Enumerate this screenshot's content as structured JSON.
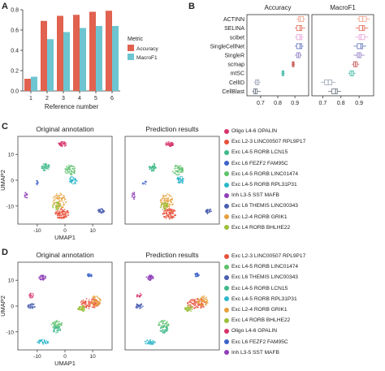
{
  "panels": {
    "A": "A",
    "B": "B",
    "C": "C",
    "D": "D"
  },
  "chart_data": [
    {
      "type": "bar",
      "panel": "A",
      "categories": [
        "1",
        "2",
        "3",
        "4",
        "5",
        "6"
      ],
      "series": [
        {
          "name": "Accuracy",
          "color": "#e0624f",
          "values": [
            0.12,
            0.69,
            0.74,
            0.75,
            0.78,
            0.79
          ]
        },
        {
          "name": "MacroF1",
          "color": "#6dc5d1",
          "values": [
            0.14,
            0.51,
            0.58,
            0.62,
            0.64,
            0.64
          ]
        }
      ],
      "xlabel": "Reference number",
      "ylabel": "",
      "ylim": [
        0,
        0.8
      ],
      "yticks": [
        "0.0",
        "0.2",
        "0.4",
        "0.6",
        "0.8"
      ],
      "legend_title": "Metric",
      "legend_position": "right"
    },
    {
      "type": "box",
      "panel": "B",
      "methods": [
        "ACTINN",
        "SELINA",
        "scibet",
        "SingleCellNet",
        "SingleR",
        "scmap",
        "mtSC",
        "CellID",
        "CellBlast"
      ],
      "colors": [
        "#f2a08a",
        "#e0624f",
        "#e7a1d8",
        "#5b6fb5",
        "#8e7cc3",
        "#c0504d",
        "#3fb5a3",
        "#9aa3b5",
        "#6b7280"
      ],
      "facets": [
        {
          "title": "Accuracy",
          "xlim": [
            0.62,
            0.98
          ],
          "xticks": [
            "0.7",
            "0.8",
            "0.9"
          ],
          "xtick_values": [
            0.7,
            0.8,
            0.9
          ],
          "boxes": [
            [
              0.91,
              0.92,
              0.93,
              0.95,
              0.96
            ],
            [
              0.9,
              0.91,
              0.93,
              0.94,
              0.96
            ],
            [
              0.9,
              0.91,
              0.93,
              0.94,
              0.95
            ],
            [
              0.9,
              0.91,
              0.93,
              0.94,
              0.95
            ],
            [
              0.9,
              0.91,
              0.92,
              0.93,
              0.94
            ],
            [
              0.88,
              0.885,
              0.89,
              0.895,
              0.9
            ],
            [
              0.82,
              0.825,
              0.83,
              0.835,
              0.84
            ],
            [
              0.66,
              0.67,
              0.68,
              0.69,
              0.7
            ],
            [
              0.65,
              0.66,
              0.67,
              0.68,
              0.7
            ]
          ]
        },
        {
          "title": "MacroF1",
          "xlim": [
            0.64,
            0.98
          ],
          "xticks": [
            "0.7",
            "0.8",
            "0.9"
          ],
          "xtick_values": [
            0.7,
            0.8,
            0.9
          ],
          "boxes": [
            [
              0.89,
              0.9,
              0.92,
              0.94,
              0.96
            ],
            [
              0.88,
              0.9,
              0.92,
              0.93,
              0.95
            ],
            [
              0.88,
              0.9,
              0.91,
              0.93,
              0.95
            ],
            [
              0.87,
              0.89,
              0.91,
              0.92,
              0.94
            ],
            [
              0.87,
              0.89,
              0.9,
              0.91,
              0.93
            ],
            [
              0.86,
              0.87,
              0.88,
              0.89,
              0.9
            ],
            [
              0.84,
              0.85,
              0.86,
              0.87,
              0.88
            ],
            [
              0.69,
              0.71,
              0.73,
              0.75,
              0.77
            ],
            [
              0.73,
              0.75,
              0.77,
              0.78,
              0.8
            ]
          ]
        }
      ]
    }
  ],
  "umapC": {
    "titles": [
      "Original annotation",
      "Prediction results"
    ],
    "xlabel": "UMAP1",
    "ylabel": "UMAP2",
    "xticks": [
      "-10",
      "0",
      "10"
    ],
    "yticks": [
      "10",
      "0",
      "-10"
    ],
    "legend": [
      {
        "label": "Oligo L4-6 OPALIN",
        "color": "#d6336c"
      },
      {
        "label": "Exc L2-3 LINC00507 RPL9P17",
        "color": "#e8503a"
      },
      {
        "label": "Exc L4-5 RORB LCN15",
        "color": "#3fb98a"
      },
      {
        "label": "Exc L6 FEZF2 FAM95C",
        "color": "#3d63c9"
      },
      {
        "label": "Exc L4-5 RORB LINC01474",
        "color": "#5cc16b"
      },
      {
        "label": "Exc L4-5 RORB RPL31P31",
        "color": "#2bb7c9"
      },
      {
        "label": "Inh L3-5 SST MAFB",
        "color": "#8e3fb8"
      },
      {
        "label": "Exc L6 THEMIS LINC00343",
        "color": "#4b5fb0"
      },
      {
        "label": "Exc L2-4 RORB GRIK1",
        "color": "#e6a13c"
      },
      {
        "label": "Exc L4 RORB BHLHE22",
        "color": "#9bbf3a"
      }
    ]
  },
  "umapD": {
    "titles": [
      "Original annotation",
      "Prediction results"
    ],
    "xlabel": "UMAP1",
    "ylabel": "UMAP2",
    "xticks": [
      "-10",
      "0",
      "10"
    ],
    "yticks": [
      "10",
      "0",
      "-10"
    ],
    "legend": [
      {
        "label": "Exc L2-3 LINC00507 RPL9P17",
        "color": "#e8503a"
      },
      {
        "label": "Exc L4-5 RORB LINC01474",
        "color": "#5cc16b"
      },
      {
        "label": "Exc L6 THEMIS LINC00343",
        "color": "#4b5fb0"
      },
      {
        "label": "Exc L4-5 RORB LCN15",
        "color": "#3fb98a"
      },
      {
        "label": "Exc L4-5 RORB RPL31P31",
        "color": "#2bb7c9"
      },
      {
        "label": "Exc L2-4 RORB GRIK1",
        "color": "#e6a13c"
      },
      {
        "label": "Exc L4 RORB BHLHE22",
        "color": "#9bbf3a"
      },
      {
        "label": "Oligo L4-6 OPALIN",
        "color": "#d6336c"
      },
      {
        "label": "Exc L6 FEZF2 FAM95C",
        "color": "#3d63c9"
      },
      {
        "label": "Inh L3-5 SST MAFB",
        "color": "#8e3fb8"
      }
    ]
  }
}
